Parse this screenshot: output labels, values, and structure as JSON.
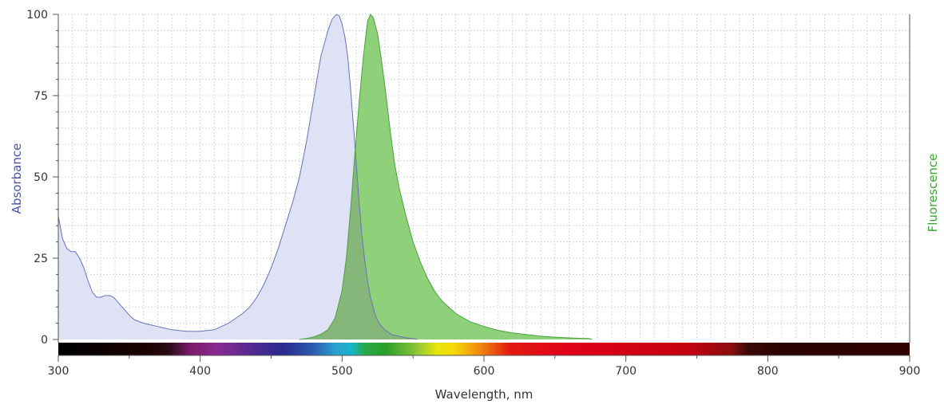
{
  "chart_data": {
    "type": "area",
    "xlabel": "Wavelength, nm",
    "ylabel_left": "Absorbance",
    "ylabel_right": "Fluorescence",
    "xlim": [
      300,
      900
    ],
    "ylim": [
      0,
      100
    ],
    "x_ticks": [
      "300",
      "400",
      "500",
      "600",
      "700",
      "800",
      "900"
    ],
    "y_ticks": [
      "0",
      "25",
      "50",
      "75",
      "100"
    ],
    "grid": true,
    "colors": {
      "absorbance_fill": "#dfe1f5",
      "absorbance_line": "#6b72b8",
      "fluorescence_fill": "#8fd07a",
      "fluorescence_line": "#4aa23c",
      "overlap_fill": "#86b77a",
      "absorbance_title": "#4a55a2",
      "fluorescence_title": "#38a832"
    },
    "series": [
      {
        "x": [
          300,
          303,
          306,
          309,
          312,
          315,
          318,
          321,
          324,
          327,
          330,
          333,
          336,
          339,
          342,
          345,
          348,
          351,
          354,
          357,
          360,
          365,
          370,
          375,
          380,
          390,
          400,
          410,
          420,
          425,
          430,
          435,
          440,
          445,
          450,
          455,
          460,
          465,
          470,
          475,
          480,
          485,
          490,
          493,
          496,
          498,
          500,
          502,
          504,
          506,
          508,
          510,
          512,
          514,
          516,
          518,
          520,
          523,
          526,
          530,
          535,
          540,
          545,
          550,
          553
        ],
        "values": [
          38,
          31,
          28,
          27,
          27,
          25,
          22,
          18,
          14.5,
          13,
          13,
          13.5,
          13.5,
          13,
          11.5,
          10,
          8.5,
          7,
          6,
          5.5,
          5,
          4.5,
          4,
          3.5,
          3,
          2.5,
          2.5,
          3,
          5,
          6.5,
          8,
          10,
          13,
          17,
          22,
          28,
          35,
          42,
          50,
          61,
          74,
          87,
          95,
          98.5,
          100,
          99.5,
          97,
          93,
          87,
          77,
          66,
          54,
          42,
          32,
          24,
          18,
          13,
          8,
          5,
          3,
          1.5,
          1,
          0.5,
          0.3,
          0
        ]
      },
      {
        "x": [
          470,
          475,
          480,
          485,
          490,
          495,
          500,
          503,
          506,
          509,
          512,
          515,
          518,
          520,
          522,
          525,
          528,
          531,
          534,
          537,
          540,
          545,
          550,
          555,
          560,
          565,
          570,
          575,
          580,
          590,
          600,
          610,
          620,
          630,
          640,
          650,
          660,
          670,
          674,
          676
        ],
        "values": [
          0,
          0.3,
          0.8,
          1.6,
          3,
          6.5,
          15,
          25,
          40,
          57,
          73,
          87,
          98,
          100,
          99,
          94,
          85,
          75,
          64,
          54,
          47,
          38,
          30,
          24,
          19,
          15,
          12,
          10,
          8,
          5.5,
          4,
          2.8,
          2,
          1.5,
          1,
          0.7,
          0.5,
          0.3,
          0.3,
          0
        ]
      }
    ]
  }
}
